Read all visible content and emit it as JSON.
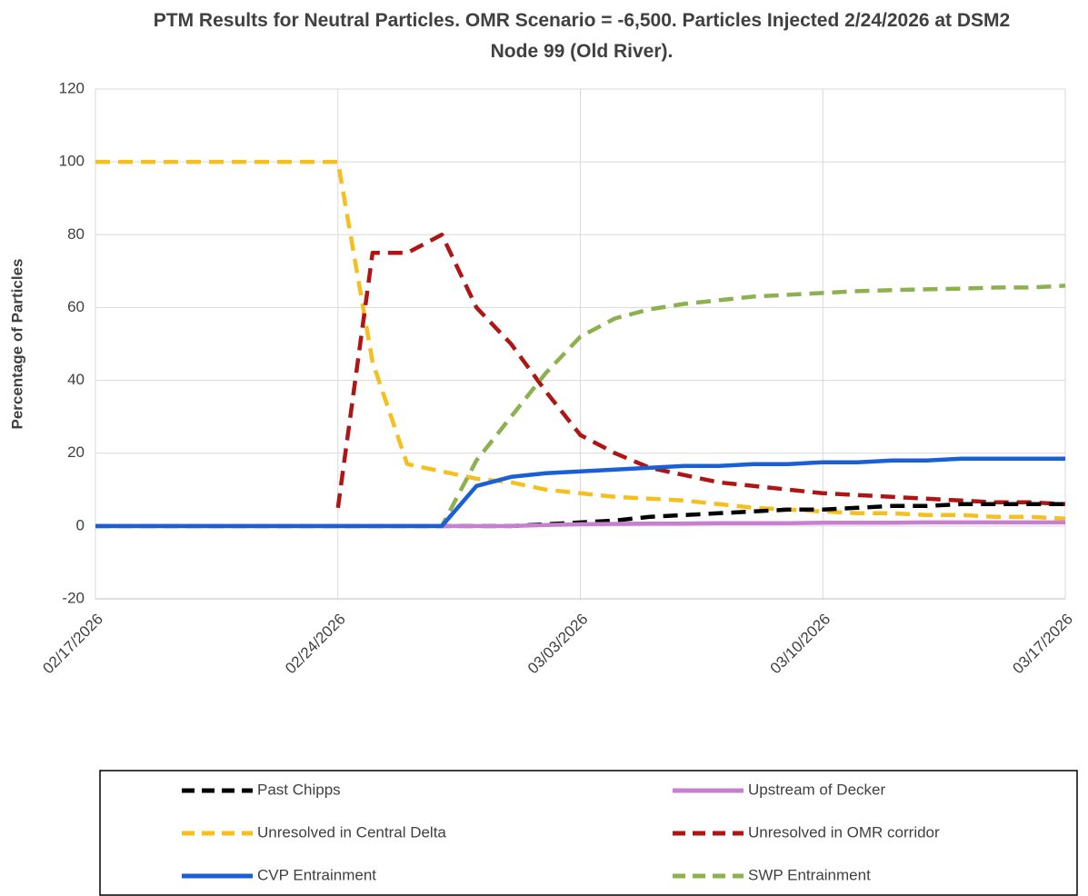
{
  "chart_data": {
    "type": "line",
    "title": "PTM Results for Neutral Particles. OMR Scenario = -6,500. Particles Injected 2/24/2026 at DSM2 Node 99 (Old River).",
    "y_label": "Percentage of Particles",
    "x": [
      "02/17/2026",
      "02/18/2026",
      "02/19/2026",
      "02/20/2026",
      "02/21/2026",
      "02/22/2026",
      "02/23/2026",
      "02/24/2026",
      "02/25/2026",
      "02/26/2026",
      "02/27/2026",
      "02/28/2026",
      "03/01/2026",
      "03/02/2026",
      "03/03/2026",
      "03/04/2026",
      "03/05/2026",
      "03/06/2026",
      "03/07/2026",
      "03/08/2026",
      "03/09/2026",
      "03/10/2026",
      "03/11/2026",
      "03/12/2026",
      "03/13/2026",
      "03/14/2026",
      "03/15/2026",
      "03/16/2026",
      "03/17/2026"
    ],
    "series": [
      {
        "name": "Past Chipps",
        "color": "#000000",
        "style": "dashed",
        "values": [
          0,
          0,
          0,
          0,
          0,
          0,
          0,
          0,
          0,
          0,
          0,
          0,
          0,
          0.5,
          1,
          1.5,
          2.5,
          3,
          3.5,
          4,
          4.5,
          4.5,
          5,
          5.5,
          5.5,
          6,
          6,
          6,
          6
        ]
      },
      {
        "name": "Upstream of Decker",
        "color": "#c77fd0",
        "style": "solid",
        "values": [
          0,
          0,
          0,
          0,
          0,
          0,
          0,
          0,
          0,
          0,
          0,
          0,
          0,
          0.3,
          0.5,
          0.6,
          0.7,
          0.7,
          0.8,
          0.8,
          0.8,
          0.9,
          0.9,
          0.9,
          1,
          1,
          1,
          1,
          1
        ]
      },
      {
        "name": "Unresolved in Central Delta",
        "color": "#f5bf1f",
        "style": "dashed",
        "values": [
          100,
          100,
          100,
          100,
          100,
          100,
          100,
          100,
          45,
          17,
          15,
          13,
          12,
          10,
          9,
          8,
          7.5,
          7,
          6,
          5,
          4.5,
          4,
          3.5,
          3.5,
          3,
          3,
          2.5,
          2.5,
          2
        ]
      },
      {
        "name": "Unresolved in OMR corridor",
        "color": "#b01515",
        "style": "dashed",
        "values": [
          null,
          null,
          null,
          null,
          null,
          null,
          null,
          5,
          75,
          75,
          80,
          60,
          50,
          37,
          25,
          20,
          16,
          14,
          12,
          11,
          10,
          9,
          8.5,
          8,
          7.5,
          7,
          6.5,
          6.5,
          6
        ]
      },
      {
        "name": "CVP Entrainment",
        "color": "#1a5fd6",
        "style": "solid",
        "values": [
          0,
          0,
          0,
          0,
          0,
          0,
          0,
          0,
          0,
          0,
          0,
          11,
          13.5,
          14.5,
          15,
          15.5,
          16,
          16.5,
          16.5,
          17,
          17,
          17.5,
          17.5,
          18,
          18,
          18.5,
          18.5,
          18.5,
          18.5
        ]
      },
      {
        "name": "SWP Entrainment",
        "color": "#8db14e",
        "style": "dashed",
        "values": [
          0,
          0,
          0,
          0,
          0,
          0,
          0,
          0,
          0,
          0,
          0,
          18,
          30,
          42,
          52,
          57,
          59.5,
          61,
          62,
          63,
          63.5,
          64,
          64.5,
          64.8,
          65,
          65.2,
          65.5,
          65.5,
          66
        ]
      }
    ],
    "xlim": [
      "02/17/2026",
      "03/17/2026"
    ],
    "xticks": [
      "02/17/2026",
      "02/24/2026",
      "03/03/2026",
      "03/10/2026",
      "03/17/2026"
    ],
    "ylim": [
      -20,
      120
    ],
    "yticks": [
      -20,
      0,
      20,
      40,
      60,
      80,
      100,
      120
    ],
    "grid": true,
    "legend": "bottom"
  }
}
